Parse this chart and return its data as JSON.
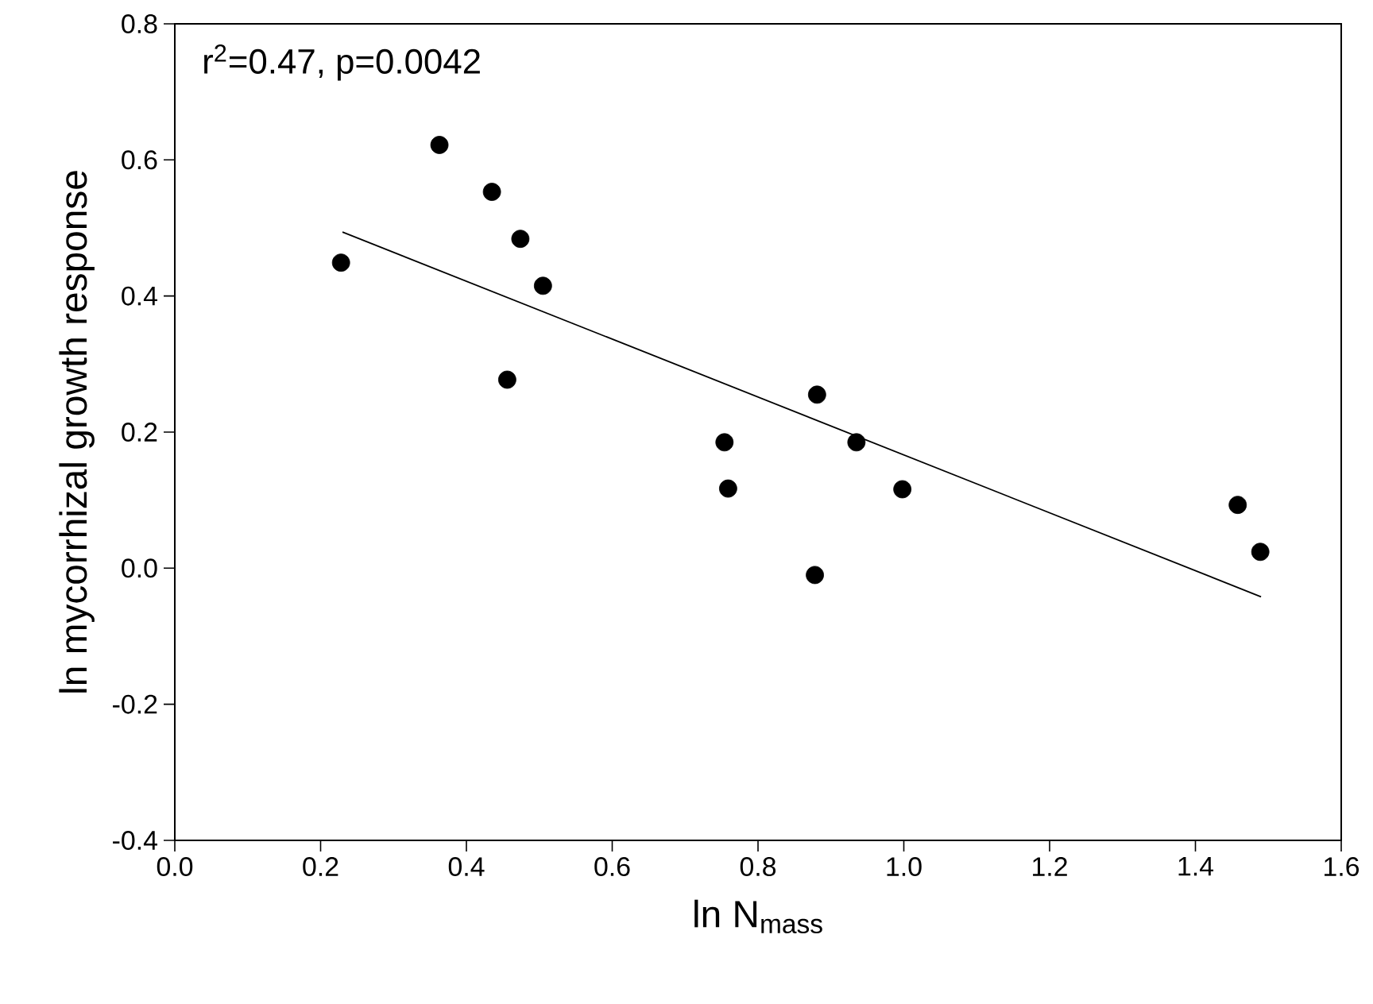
{
  "chart_data": {
    "type": "scatter",
    "xlabel": "ln N$_{mass}$",
    "ylabel": "ln mycorrhizal growth response",
    "annotations": [
      "r$^{2}$=0.47, p=0.0042"
    ],
    "xlim": [
      0,
      1.6
    ],
    "ylim": [
      -0.4,
      0.8
    ],
    "xticks": [
      {
        "value": 0,
        "label": "0.0"
      },
      0.2,
      0.4,
      0.6,
      0.8,
      {
        "value": 1,
        "label": "1.0"
      },
      1.2,
      1.4,
      1.6
    ],
    "yticks": [
      -0.4,
      -0.2,
      {
        "value": 0,
        "label": "0.0"
      },
      0.2,
      0.4,
      0.6,
      0.8
    ],
    "grid": false,
    "series": [
      {
        "marker": "circle",
        "color": "#000000",
        "x": [
          0.228,
          0.363,
          0.435,
          0.474,
          0.505,
          0.456,
          0.754,
          0.759,
          0.878,
          0.881,
          0.935,
          0.998,
          1.458,
          1.489
        ],
        "values": [
          0.449,
          0.622,
          0.553,
          0.484,
          0.415,
          0.277,
          0.185,
          0.117,
          -0.01,
          0.255,
          0.185,
          0.116,
          0.093,
          0.024
        ]
      },
      {
        "type": "line",
        "color": "#000000",
        "marker": "none",
        "line_style": "solid",
        "x": [
          0.23,
          1.49
        ],
        "values": [
          0.494,
          -0.042
        ]
      }
    ]
  }
}
